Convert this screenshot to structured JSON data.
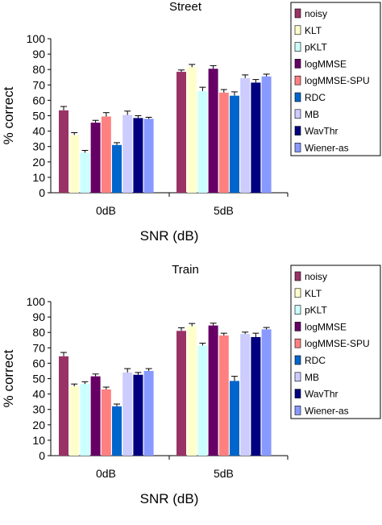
{
  "chart_data": [
    {
      "type": "bar",
      "title": "Street",
      "xlabel": "SNR (dB)",
      "ylabel": "% correct",
      "ylim": [
        0,
        100
      ],
      "yticks": [
        "0",
        "10",
        "20",
        "30",
        "40",
        "50",
        "60",
        "70",
        "80",
        "90",
        "100"
      ],
      "categories": [
        "0dB",
        "5dB"
      ],
      "legend_position": "right",
      "series": [
        {
          "name": "noisy",
          "color": "#993366",
          "values": [
            53.5,
            78.5
          ],
          "errors": [
            2.5,
            1.2
          ]
        },
        {
          "name": "KLT",
          "color": "#ffffcc",
          "values": [
            37.5,
            81.5
          ],
          "errors": [
            1.5,
            1.8
          ]
        },
        {
          "name": "pKLT",
          "color": "#ccffff",
          "values": [
            26,
            66
          ],
          "errors": [
            1.5,
            2.5
          ]
        },
        {
          "name": "logMMSE",
          "color": "#660066",
          "values": [
            45.5,
            80.5
          ],
          "errors": [
            1.5,
            2
          ]
        },
        {
          "name": "logMMSE-SPU",
          "color": "#ff8080",
          "values": [
            49.5,
            65
          ],
          "errors": [
            2.5,
            2
          ]
        },
        {
          "name": "RDC",
          "color": "#0066cc",
          "values": [
            31,
            63
          ],
          "errors": [
            1.5,
            2.5
          ]
        },
        {
          "name": "MB",
          "color": "#ccccff",
          "values": [
            50.5,
            74.5
          ],
          "errors": [
            2.5,
            2
          ]
        },
        {
          "name": "WavThr",
          "color": "#000080",
          "values": [
            48.5,
            71.5
          ],
          "errors": [
            1.5,
            2
          ]
        },
        {
          "name": "Wiener-as",
          "color": "#8899ff",
          "values": [
            48,
            75.5
          ],
          "errors": [
            1,
            1.5
          ]
        }
      ]
    },
    {
      "type": "bar",
      "title": "Train",
      "xlabel": "SNR (dB)",
      "ylabel": "% correct",
      "ylim": [
        0,
        100
      ],
      "yticks": [
        "0",
        "10",
        "20",
        "30",
        "40",
        "50",
        "60",
        "70",
        "80",
        "90",
        "100"
      ],
      "categories": [
        "0dB",
        "5dB"
      ],
      "legend_position": "right",
      "series": [
        {
          "name": "noisy",
          "color": "#993366",
          "values": [
            64.5,
            81
          ],
          "errors": [
            2.5,
            2
          ]
        },
        {
          "name": "KLT",
          "color": "#ffffcc",
          "values": [
            45,
            84
          ],
          "errors": [
            1.5,
            1.8
          ]
        },
        {
          "name": "pKLT",
          "color": "#ccffff",
          "values": [
            46.5,
            71.5
          ],
          "errors": [
            1.5,
            1.5
          ]
        },
        {
          "name": "logMMSE",
          "color": "#660066",
          "values": [
            51.5,
            84.5
          ],
          "errors": [
            1.5,
            1.5
          ]
        },
        {
          "name": "logMMSE-SPU",
          "color": "#ff8080",
          "values": [
            43,
            78
          ],
          "errors": [
            1.5,
            1.5
          ]
        },
        {
          "name": "RDC",
          "color": "#0066cc",
          "values": [
            32,
            48.5
          ],
          "errors": [
            1.5,
            3
          ]
        },
        {
          "name": "MB",
          "color": "#ccccff",
          "values": [
            54,
            79
          ],
          "errors": [
            2.5,
            1.2
          ]
        },
        {
          "name": "WavThr",
          "color": "#000080",
          "values": [
            52.5,
            77
          ],
          "errors": [
            1.5,
            2.5
          ]
        },
        {
          "name": "Wiener-as",
          "color": "#8899ff",
          "values": [
            55,
            82
          ],
          "errors": [
            1.5,
            1.2
          ]
        }
      ]
    }
  ]
}
